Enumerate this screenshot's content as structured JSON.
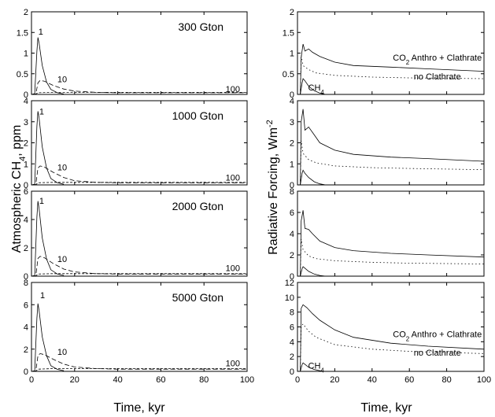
{
  "chart_data": {
    "type": "line",
    "left_ylabel": {
      "prefix": "Atmospheric CH",
      "sub": "4",
      "suffix": ", ppm"
    },
    "right_ylabel": {
      "prefix": "Radiative Forcing, Wm",
      "sup": "-2"
    },
    "left_xlabel": "Time, kyr",
    "right_xlabel": "Time, kyr",
    "x_ticks": [
      0,
      20,
      40,
      60,
      80,
      100
    ],
    "xlim": [
      0,
      100
    ],
    "left_panels": [
      {
        "title": "300 Gton",
        "ylim": [
          0,
          2
        ],
        "y_ticks": [
          "0",
          "0.5",
          "1",
          "1.5",
          "2"
        ],
        "y_tick_values": [
          0,
          0.5,
          1,
          1.5,
          2
        ],
        "labels": [
          {
            "text": "1",
            "x": 3.2,
            "y": 1.45
          },
          {
            "text": "10",
            "x": 12,
            "y": 0.3
          },
          {
            "text": "100",
            "x": 90,
            "y": 0.06
          }
        ],
        "series": [
          {
            "x": [
              0,
              1.5,
              2.5,
              3,
              3.5,
              5,
              7,
              9,
              12,
              15
            ],
            "y": [
              0,
              0.02,
              1.05,
              1.38,
              1.25,
              0.7,
              0.3,
              0.12,
              0.04,
              0.01
            ]
          },
          {
            "x": [
              0,
              2,
              3,
              4,
              6,
              10,
              15,
              20,
              30,
              40,
              100
            ],
            "y": [
              0,
              0.01,
              0.28,
              0.34,
              0.32,
              0.22,
              0.13,
              0.08,
              0.05,
              0.04,
              0.04
            ]
          },
          {
            "x": [
              0,
              2,
              3,
              10,
              30,
              100
            ],
            "y": [
              0,
              0.01,
              0.04,
              0.05,
              0.05,
              0.05
            ]
          }
        ]
      },
      {
        "title": "1000 Gton",
        "ylim": [
          0,
          4
        ],
        "y_ticks": [
          "0",
          "1",
          "2",
          "3",
          "4"
        ],
        "y_tick_values": [
          0,
          1,
          2,
          3,
          4
        ],
        "labels": [
          {
            "text": "1",
            "x": 3.6,
            "y": 3.35
          },
          {
            "text": "10",
            "x": 12,
            "y": 0.7
          },
          {
            "text": "100",
            "x": 90,
            "y": 0.2
          }
        ],
        "series": [
          {
            "x": [
              0,
              1.5,
              2.5,
              3,
              3.5,
              5,
              7,
              9,
              12,
              15
            ],
            "y": [
              0,
              0.03,
              2.8,
              3.5,
              3.2,
              1.8,
              0.8,
              0.3,
              0.1,
              0.03
            ]
          },
          {
            "x": [
              0,
              2,
              3,
              4,
              6,
              10,
              15,
              20,
              30,
              40,
              100
            ],
            "y": [
              0,
              0.02,
              0.8,
              0.9,
              0.85,
              0.6,
              0.35,
              0.2,
              0.12,
              0.1,
              0.1
            ]
          },
          {
            "x": [
              0,
              2,
              3,
              10,
              30,
              100
            ],
            "y": [
              0,
              0.01,
              0.1,
              0.12,
              0.12,
              0.12
            ]
          }
        ]
      },
      {
        "title": "2000 Gton",
        "ylim": [
          0,
          6
        ],
        "y_ticks": [
          "0",
          "2",
          "4",
          "6"
        ],
        "y_tick_values": [
          0,
          2,
          4,
          6
        ],
        "labels": [
          {
            "text": "1",
            "x": 3.6,
            "y": 5.1
          },
          {
            "text": "10",
            "x": 12,
            "y": 1.0
          },
          {
            "text": "100",
            "x": 90,
            "y": 0.35
          }
        ],
        "series": [
          {
            "x": [
              0,
              1.5,
              2.5,
              3,
              3.5,
              5,
              7,
              9,
              12,
              15
            ],
            "y": [
              0,
              0.05,
              4.2,
              5.3,
              4.8,
              2.7,
              1.2,
              0.45,
              0.15,
              0.05
            ]
          },
          {
            "x": [
              0,
              2,
              3,
              4,
              6,
              10,
              15,
              20,
              30,
              40,
              100
            ],
            "y": [
              0,
              0.03,
              1.25,
              1.4,
              1.3,
              0.9,
              0.5,
              0.3,
              0.18,
              0.15,
              0.15
            ]
          },
          {
            "x": [
              0,
              2,
              3,
              10,
              30,
              100
            ],
            "y": [
              0,
              0.02,
              0.15,
              0.18,
              0.18,
              0.18
            ]
          }
        ]
      },
      {
        "title": "5000 Gton",
        "ylim": [
          0,
          8
        ],
        "y_ticks": [
          "0",
          "2",
          "4",
          "6",
          "8"
        ],
        "y_tick_values": [
          0,
          2,
          4,
          6,
          8
        ],
        "labels": [
          {
            "text": "1",
            "x": 4.0,
            "y": 6.6
          },
          {
            "text": "10",
            "x": 12,
            "y": 1.5
          },
          {
            "text": "100",
            "x": 90,
            "y": 0.45
          }
        ],
        "series": [
          {
            "x": [
              0,
              1.5,
              2.5,
              3,
              3.5,
              5,
              7,
              9,
              12,
              15
            ],
            "y": [
              0,
              0.05,
              4.8,
              6.1,
              5.5,
              3.1,
              1.4,
              0.5,
              0.18,
              0.06
            ]
          },
          {
            "x": [
              0,
              2,
              3,
              4,
              6,
              10,
              15,
              20,
              30,
              40,
              100
            ],
            "y": [
              0,
              0.04,
              1.4,
              1.6,
              1.5,
              1.1,
              0.65,
              0.4,
              0.25,
              0.2,
              0.2
            ]
          },
          {
            "x": [
              0,
              2,
              3,
              10,
              30,
              100
            ],
            "y": [
              0,
              0.02,
              0.2,
              0.25,
              0.25,
              0.25
            ]
          }
        ]
      }
    ],
    "right_panels": [
      {
        "ylim": [
          0,
          2
        ],
        "y_ticks": [
          "0",
          "0.5",
          "1",
          "1.5",
          "2"
        ],
        "y_tick_values": [
          0,
          0.5,
          1,
          1.5,
          2
        ],
        "annotations": [
          {
            "prefix": "CO",
            "sub": "2",
            "suffix": " Anthro + Clathrate",
            "x": 75,
            "y": 0.82
          },
          {
            "prefix": "no Clathrate",
            "sub": "",
            "suffix": "",
            "x": 75,
            "y": 0.36
          },
          {
            "prefix": "CH",
            "sub": "4",
            "suffix": "",
            "x": 10,
            "y": 0.1
          }
        ],
        "series": [
          {
            "x": [
              0,
              1.5,
              2,
              3,
              4,
              6,
              8,
              12,
              20,
              30,
              50,
              70,
              100
            ],
            "y": [
              0,
              0,
              0.9,
              1.22,
              1.05,
              1.1,
              1.02,
              0.92,
              0.78,
              0.7,
              0.66,
              0.62,
              0.56
            ]
          },
          {
            "x": [
              0,
              1.5,
              2,
              3,
              6,
              10,
              20,
              40,
              60,
              100
            ],
            "y": [
              0,
              0,
              0.95,
              0.7,
              0.6,
              0.52,
              0.46,
              0.42,
              0.4,
              0.38
            ]
          },
          {
            "x": [
              0,
              1.5,
              2.5,
              3,
              4,
              6,
              9,
              12,
              15
            ],
            "y": [
              0,
              0,
              0.28,
              0.38,
              0.33,
              0.2,
              0.09,
              0.03,
              0
            ]
          }
        ]
      },
      {
        "ylim": [
          0,
          4
        ],
        "y_ticks": [
          "0",
          "1",
          "2",
          "3",
          "4"
        ],
        "y_tick_values": [
          0,
          1,
          2,
          3,
          4
        ],
        "annotations": [],
        "series": [
          {
            "x": [
              0,
              1.5,
              2,
              3,
              4,
              6,
              8,
              12,
              20,
              30,
              50,
              70,
              100
            ],
            "y": [
              0,
              0,
              3.0,
              3.6,
              2.6,
              2.75,
              2.5,
              2.0,
              1.65,
              1.45,
              1.32,
              1.25,
              1.12
            ]
          },
          {
            "x": [
              0,
              1.5,
              2,
              3,
              6,
              10,
              20,
              40,
              60,
              100
            ],
            "y": [
              0,
              0,
              2.1,
              1.5,
              1.2,
              1.05,
              0.9,
              0.82,
              0.78,
              0.72
            ]
          },
          {
            "x": [
              0,
              1.5,
              2.5,
              3,
              4,
              6,
              9,
              12,
              15
            ],
            "y": [
              0,
              0,
              0.55,
              0.7,
              0.55,
              0.35,
              0.15,
              0.05,
              0
            ]
          }
        ]
      },
      {
        "ylim": [
          0,
          8
        ],
        "y_ticks": [
          "0",
          "2",
          "4",
          "6",
          "8"
        ],
        "y_tick_values": [
          0,
          2,
          4,
          6,
          8
        ],
        "annotations": [],
        "series": [
          {
            "x": [
              0,
              1.5,
              2,
              3,
              4,
              6,
              8,
              12,
              20,
              30,
              50,
              70,
              100
            ],
            "y": [
              0,
              0,
              5.2,
              6.2,
              4.5,
              4.4,
              4.0,
              3.3,
              2.7,
              2.4,
              2.15,
              2.0,
              1.8
            ]
          },
          {
            "x": [
              0,
              1.5,
              2,
              3,
              6,
              10,
              20,
              40,
              60,
              100
            ],
            "y": [
              0,
              0,
              3.5,
              2.5,
              1.9,
              1.65,
              1.45,
              1.3,
              1.22,
              1.15
            ]
          },
          {
            "x": [
              0,
              1.5,
              2.5,
              3,
              4,
              6,
              9,
              12,
              15
            ],
            "y": [
              0,
              0,
              0.7,
              0.9,
              0.75,
              0.45,
              0.2,
              0.07,
              0
            ]
          }
        ]
      },
      {
        "ylim": [
          0,
          12
        ],
        "y_ticks": [
          "0",
          "2",
          "4",
          "6",
          "8",
          "10",
          "12"
        ],
        "y_tick_values": [
          0,
          2,
          4,
          6,
          8,
          10,
          12
        ],
        "annotations": [
          {
            "prefix": "CO",
            "sub": "2",
            "suffix": " Anthro + Clathrate",
            "x": 75,
            "y": 4.6
          },
          {
            "prefix": "no Clathrate",
            "sub": "",
            "suffix": "",
            "x": 75,
            "y": 2.1
          },
          {
            "prefix": "CH",
            "sub": "4",
            "suffix": "",
            "x": 10,
            "y": 0.35
          }
        ],
        "series": [
          {
            "x": [
              0,
              1.5,
              2,
              3,
              5,
              8,
              12,
              20,
              30,
              50,
              70,
              100
            ],
            "y": [
              0,
              0,
              8.5,
              9.0,
              8.6,
              7.8,
              6.9,
              5.6,
              4.6,
              3.8,
              3.4,
              3.0
            ]
          },
          {
            "x": [
              0,
              1.5,
              2,
              3,
              6,
              10,
              20,
              40,
              60,
              100
            ],
            "y": [
              0,
              0,
              6.0,
              6.4,
              5.4,
              4.6,
              3.6,
              3.0,
              2.7,
              2.4
            ]
          },
          {
            "x": [
              0,
              1.5,
              2.5,
              3,
              4,
              6,
              9,
              12,
              15
            ],
            "y": [
              0,
              0,
              0.9,
              1.15,
              0.95,
              0.55,
              0.25,
              0.08,
              0
            ]
          }
        ]
      }
    ]
  }
}
